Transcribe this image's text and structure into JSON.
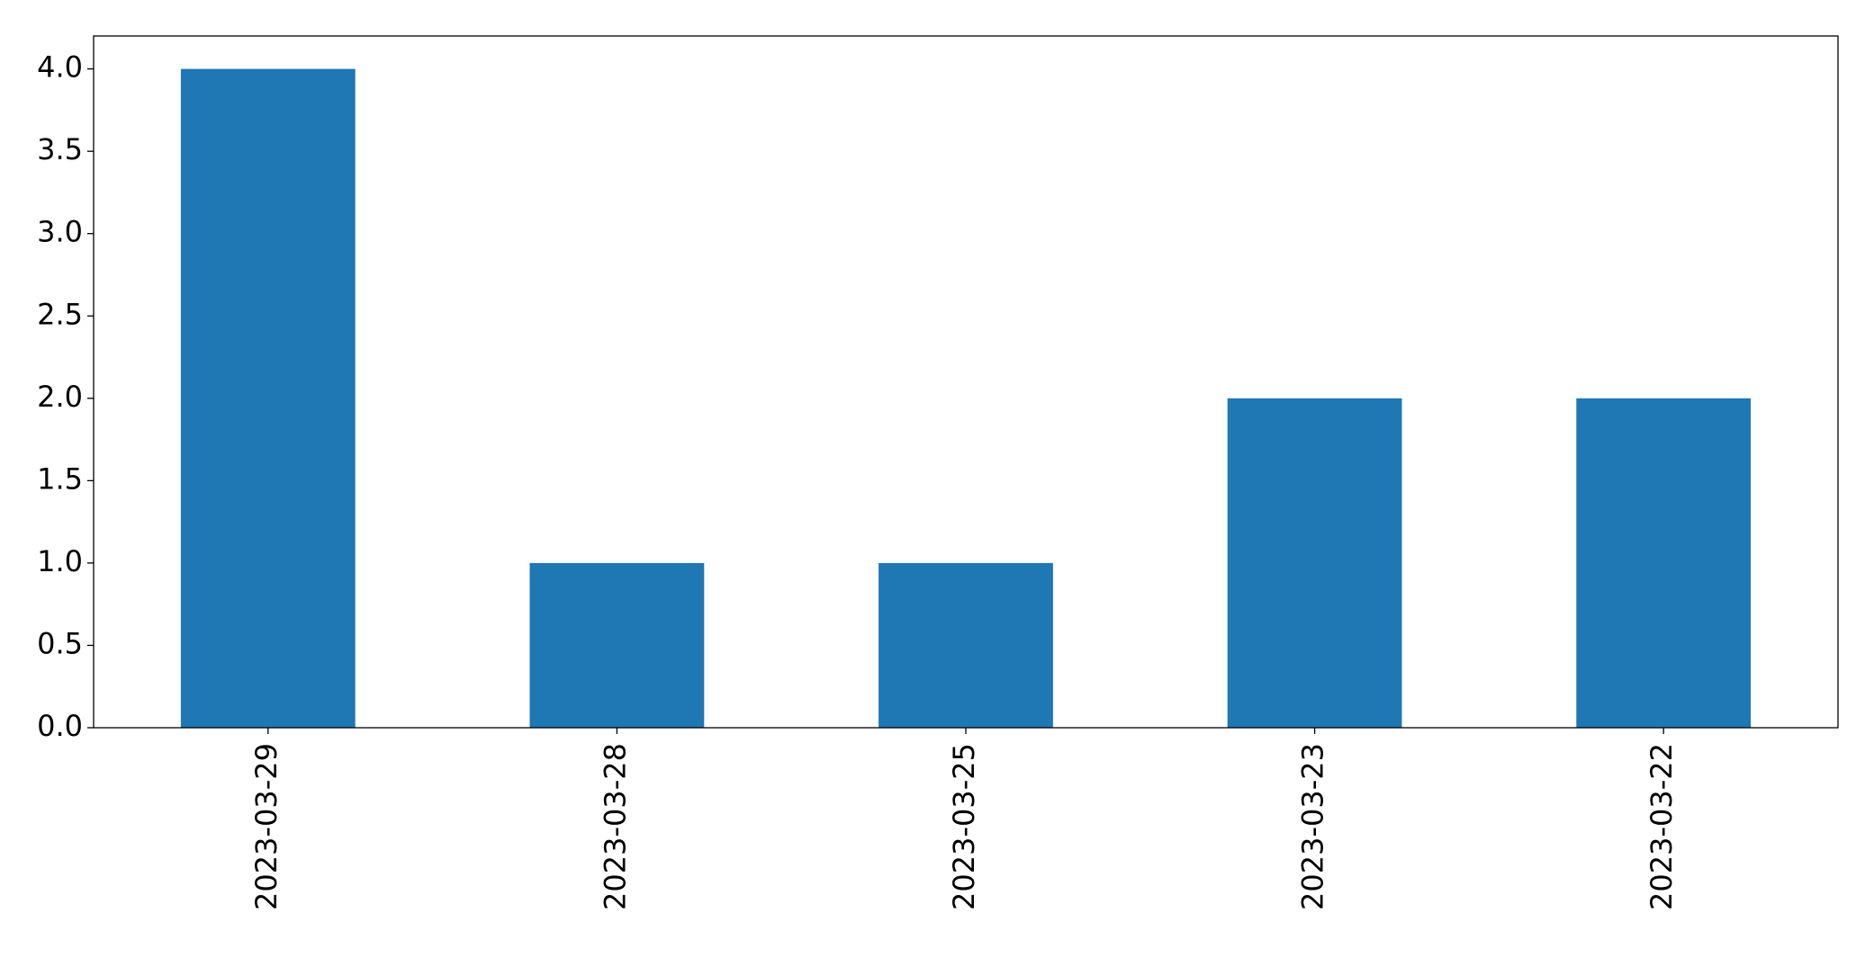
{
  "chart_data": {
    "type": "bar",
    "categories": [
      "2023-03-29",
      "2023-03-28",
      "2023-03-25",
      "2023-03-23",
      "2023-03-22"
    ],
    "values": [
      4,
      1,
      1,
      2,
      2
    ],
    "color": "#1f77b4",
    "ylim": [
      0,
      4.2
    ],
    "yticks": [
      {
        "value": 0,
        "label": "0.0"
      },
      {
        "value": 0.5,
        "label": "0.5"
      },
      {
        "value": 1,
        "label": "1.0"
      },
      {
        "value": 1.5,
        "label": "1.5"
      },
      {
        "value": 2,
        "label": "2.0"
      },
      {
        "value": 2.5,
        "label": "2.5"
      },
      {
        "value": 3,
        "label": "3.0"
      },
      {
        "value": 3.5,
        "label": "3.5"
      },
      {
        "value": 4,
        "label": "4.0"
      }
    ],
    "grid": false
  }
}
